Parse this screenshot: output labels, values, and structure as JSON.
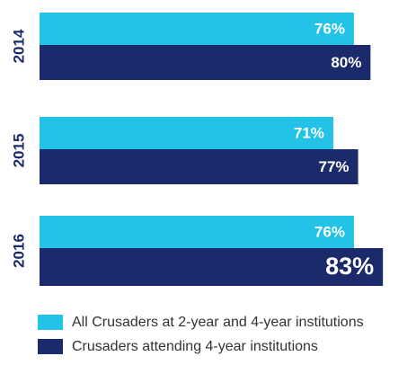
{
  "chart_data": {
    "type": "bar",
    "orientation": "horizontal",
    "categories": [
      "2014",
      "2015",
      "2016"
    ],
    "series": [
      {
        "name": "All Crusaders at 2-year and 4-year institutions",
        "color": "#22c3e6",
        "values": [
          76,
          71,
          76
        ],
        "value_labels": [
          "76%",
          "71%",
          "76%"
        ]
      },
      {
        "name": "Crusaders attending 4-year institutions",
        "color": "#1b2a6b",
        "values": [
          80,
          77,
          83
        ],
        "value_labels": [
          "80%",
          "77%",
          "83%"
        ]
      }
    ],
    "xlim": [
      0,
      86
    ],
    "legend": "bottom-left"
  }
}
